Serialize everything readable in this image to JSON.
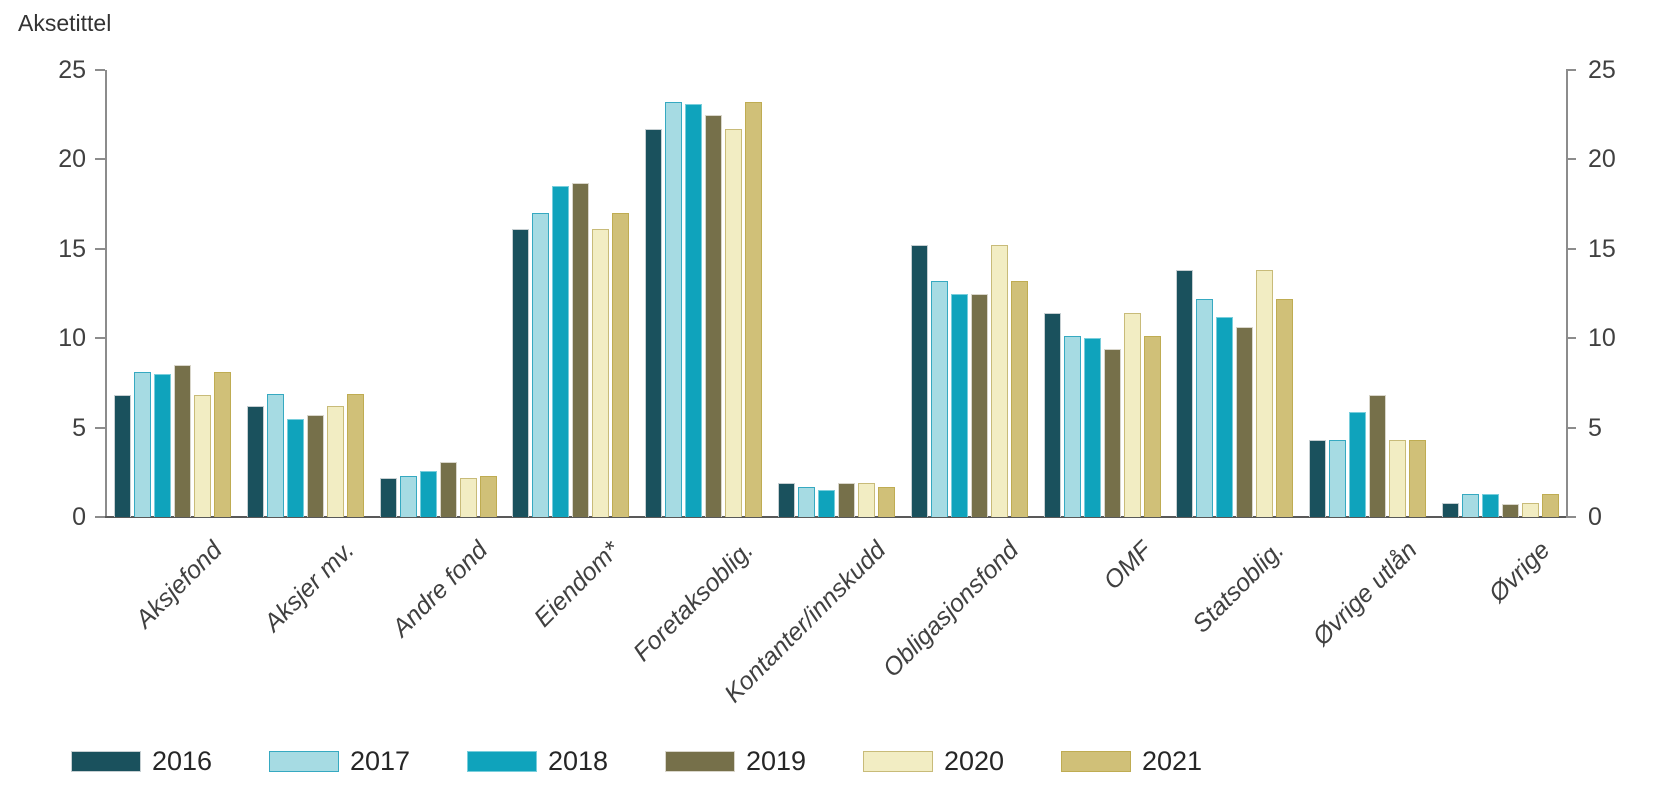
{
  "chart": {
    "axis_title": "Aksetittel"
  },
  "chart_data": {
    "type": "bar",
    "title": "Aksetittel",
    "xlabel": "",
    "ylabel": "",
    "ylim": [
      0,
      25
    ],
    "yticks": [
      0,
      5,
      10,
      15,
      20,
      25
    ],
    "grid": false,
    "legend_position": "bottom",
    "y_axis_sides": [
      "left",
      "right"
    ],
    "categories": [
      "Aksjefond",
      "Aksjer mv.",
      "Andre fond",
      "Eiendom*",
      "Foretaksoblig.",
      "Kontanter/innskudd",
      "Obligasjonsfond",
      "OMF",
      "Statsoblig.",
      "Øvrige utlån",
      "Øvrige"
    ],
    "series": [
      {
        "name": "2016",
        "color": "#1A515D",
        "border": "#C6CFD2",
        "values": [
          6.8,
          6.2,
          2.2,
          16.1,
          21.7,
          1.9,
          15.2,
          11.4,
          13.8,
          4.3,
          0.8
        ]
      },
      {
        "name": "2017",
        "color": "#A6DBE3",
        "border": "#36A9C1",
        "values": [
          8.1,
          6.9,
          2.3,
          17.0,
          23.2,
          1.7,
          13.2,
          10.1,
          12.2,
          4.3,
          1.3
        ]
      },
      {
        "name": "2018",
        "color": "#0FA3BC",
        "border": "#79CEDC",
        "values": [
          8.0,
          5.5,
          2.6,
          18.5,
          23.1,
          1.5,
          12.5,
          10.0,
          11.2,
          5.9,
          1.3
        ]
      },
      {
        "name": "2019",
        "color": "#76704A",
        "border": "#D9D6CB",
        "values": [
          8.5,
          5.7,
          3.1,
          18.7,
          22.5,
          1.9,
          12.5,
          9.4,
          10.6,
          6.8,
          0.7
        ]
      },
      {
        "name": "2020",
        "color": "#F2EDC3",
        "border": "#C8BB79",
        "values": [
          6.8,
          6.2,
          2.2,
          16.1,
          21.7,
          1.9,
          15.2,
          11.4,
          13.8,
          4.3,
          0.8
        ]
      },
      {
        "name": "2021",
        "color": "#D0C078",
        "border": "#BFAC52",
        "values": [
          8.1,
          6.9,
          2.3,
          17.0,
          23.2,
          1.7,
          13.2,
          10.1,
          12.2,
          4.3,
          1.3
        ]
      }
    ]
  }
}
